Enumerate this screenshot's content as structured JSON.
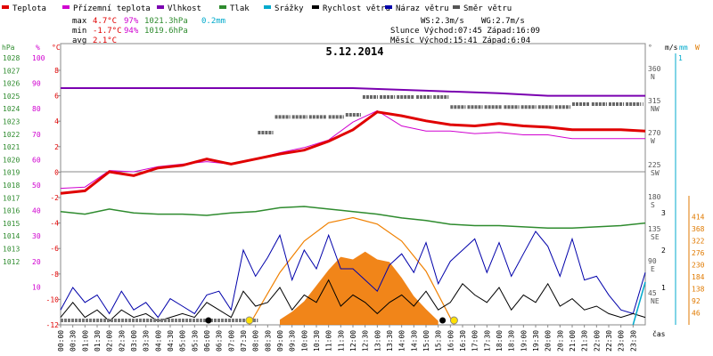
{
  "chart_data": {
    "type": "line",
    "title": "5.12.2014",
    "legend": [
      {
        "name": "Teplota",
        "color": "#e00000"
      },
      {
        "name": "Přízemní teplota",
        "color": "#d000d0"
      },
      {
        "name": "Vlhkost",
        "color": "#7a00b0"
      },
      {
        "name": "Tlak",
        "color": "#2e8b2e"
      },
      {
        "name": "Srážky",
        "color": "#00aacc"
      },
      {
        "name": "Rychlost větru",
        "color": "#000000"
      },
      {
        "name": "Náraz větru",
        "color": "#0000aa"
      },
      {
        "name": "Směr větru",
        "color": "#555555"
      }
    ],
    "stats": {
      "max_label": "max",
      "max_temp": "4.7°C",
      "max_hum": "97%",
      "max_press": "1021.3hPa",
      "max_rain": "0.2mm",
      "min_label": "min",
      "min_temp": "-1.7°C",
      "min_hum": "94%",
      "min_press": "1019.6hPa",
      "avg_label": "avg",
      "avg_temp": "2.1°C",
      "ws": "WS:2.3m/s",
      "wg": "WG:2.7m/s",
      "sun": "Slunce Východ:07:45  Západ:16:09",
      "moon": "Měsíc  Východ:15:41  Západ:6:04"
    },
    "axis_headers": {
      "hpa": "hPa",
      "pct": "%",
      "degc": "°C",
      "deg": "°",
      "ms": "m/s",
      "mm": "mm",
      "w": "W",
      "cas": "čas"
    },
    "hpa_ticks": [
      "1028",
      "1027",
      "1026",
      "1025",
      "1024",
      "1023",
      "1022",
      "1021",
      "1020",
      "1019",
      "1018",
      "1017",
      "1016",
      "1015",
      "1014",
      "1013",
      "1012"
    ],
    "pct_ticks": [
      "100",
      "90",
      "80",
      "70",
      "60",
      "50",
      "40",
      "30",
      "20",
      "10"
    ],
    "temp_ticks": [
      "8",
      "6",
      "4",
      "2",
      "0",
      "-2",
      "-4",
      "-6",
      "-8",
      "-10",
      "-12"
    ],
    "dir_ticks": [
      {
        "value": "360",
        "label": "N"
      },
      {
        "value": "315",
        "label": "NW"
      },
      {
        "value": "270",
        "label": "W"
      },
      {
        "value": "225",
        "label": "SW"
      },
      {
        "value": "180",
        "label": "S"
      },
      {
        "value": "135",
        "label": "SE"
      },
      {
        "value": "90",
        "label": "E"
      },
      {
        "value": "45",
        "label": "NE"
      }
    ],
    "wind_ticks": [
      "3",
      "2",
      "1"
    ],
    "rain_ticks": [
      "1"
    ],
    "sun_ticks": [
      "414",
      "368",
      "322",
      "276",
      "230",
      "184",
      "138",
      "92",
      "46"
    ],
    "x_ticks": [
      "00:00",
      "00:30",
      "01:00",
      "01:30",
      "02:00",
      "02:30",
      "03:00",
      "03:30",
      "04:00",
      "04:30",
      "05:00",
      "05:30",
      "06:00",
      "06:30",
      "07:00",
      "07:30",
      "08:00",
      "08:30",
      "09:00",
      "09:30",
      "10:00",
      "10:30",
      "11:00",
      "11:30",
      "12:00",
      "12:30",
      "13:00",
      "13:30",
      "14:00",
      "14:30",
      "15:00",
      "15:30",
      "16:00",
      "16:30",
      "17:00",
      "17:30",
      "18:00",
      "18:30",
      "19:00",
      "19:30",
      "20:00",
      "20:30",
      "21:00",
      "21:30",
      "22:00",
      "22:30",
      "23:00",
      "23:30"
    ],
    "temperature": {
      "x": [
        0,
        1,
        2,
        3,
        4,
        5,
        6,
        7,
        8,
        9,
        10,
        11,
        12,
        13,
        14,
        15,
        16,
        17,
        18,
        19,
        20,
        21,
        22,
        23,
        24
      ],
      "y": [
        -1.7,
        -1.5,
        0,
        -0.3,
        0.3,
        0.5,
        1,
        0.6,
        1,
        1.4,
        1.7,
        2.4,
        3.3,
        4.7,
        4.4,
        4.0,
        3.7,
        3.6,
        3.8,
        3.6,
        3.5,
        3.3,
        3.3,
        3.3,
        3.2
      ]
    },
    "ground_temperature": {
      "x": [
        0,
        1,
        2,
        3,
        4,
        5,
        6,
        7,
        8,
        9,
        10,
        11,
        12,
        13,
        14,
        15,
        16,
        17,
        18,
        19,
        20,
        21,
        22,
        23,
        24
      ],
      "y": [
        -1.3,
        -1.2,
        0.1,
        0,
        0.4,
        0.6,
        0.8,
        0.6,
        1,
        1.5,
        1.9,
        2.5,
        3.9,
        4.8,
        3.6,
        3.2,
        3.2,
        3.0,
        3.1,
        2.9,
        2.9,
        2.6,
        2.6,
        2.6,
        2.6
      ]
    },
    "humidity": {
      "x": [
        0,
        4,
        5,
        6,
        8,
        10,
        12,
        15,
        18,
        20,
        22,
        24
      ],
      "y": [
        97,
        97,
        97,
        97,
        97,
        97,
        97,
        96,
        95,
        94,
        94,
        94
      ]
    },
    "pressure": {
      "x": [
        0,
        1,
        2,
        3,
        4,
        5,
        6,
        7,
        8,
        9,
        10,
        11,
        12,
        13,
        14,
        15,
        16,
        17,
        18,
        19,
        20,
        21,
        22,
        23,
        24
      ],
      "y": [
        1020.9,
        1020.7,
        1021.1,
        1020.8,
        1020.7,
        1020.7,
        1020.6,
        1020.8,
        1020.9,
        1021.2,
        1021.3,
        1021.1,
        1020.9,
        1020.7,
        1020.4,
        1020.2,
        1019.9,
        1019.8,
        1019.8,
        1019.7,
        1019.6,
        1019.6,
        1019.7,
        1019.8,
        1020.0
      ]
    },
    "wind_direction": {
      "x": [
        8.1,
        8.8,
        9.5,
        10.2,
        11.0,
        11.7,
        12.4,
        13.1,
        13.8,
        14.6,
        15.3,
        16.0,
        16.7,
        17.4,
        18.2,
        18.9,
        19.6,
        20.3,
        21.0,
        21.8,
        22.5,
        23.2,
        23.9
      ],
      "y": [
        270,
        292,
        292,
        292,
        292,
        295,
        320,
        320,
        320,
        320,
        320,
        306,
        306,
        306,
        306,
        306,
        306,
        306,
        310,
        310,
        310,
        310,
        310
      ]
    },
    "wind_speed": {
      "x": [
        0,
        0.5,
        1,
        1.5,
        2,
        2.5,
        3,
        3.5,
        4,
        4.5,
        5,
        5.5,
        6,
        6.5,
        7,
        7.5,
        8,
        8.5,
        9,
        9.5,
        10,
        10.5,
        11,
        11.5,
        12,
        12.5,
        13,
        13.5,
        14,
        14.5,
        15,
        15.5,
        16,
        16.5,
        17,
        17.5,
        18,
        18.5,
        19,
        19.5,
        20,
        20.5,
        21,
        21.5,
        22,
        22.5,
        23,
        23.5,
        24
      ],
      "y": [
        0.2,
        0.6,
        0.2,
        0.4,
        0.1,
        0.4,
        0.2,
        0.3,
        0.1,
        0.2,
        0.3,
        0.2,
        0.6,
        0.4,
        0.2,
        0.9,
        0.5,
        0.6,
        1.0,
        0.4,
        0.8,
        0.6,
        1.2,
        0.5,
        0.8,
        0.6,
        0.3,
        0.6,
        0.8,
        0.5,
        0.9,
        0.4,
        0.6,
        1.1,
        0.8,
        0.6,
        1.0,
        0.4,
        0.8,
        0.6,
        1.1,
        0.5,
        0.7,
        0.4,
        0.5,
        0.3,
        0.2,
        0.3,
        0.2
      ]
    },
    "wind_gust": {
      "x": [
        0,
        0.5,
        1,
        1.5,
        2,
        2.5,
        3,
        3.5,
        4,
        4.5,
        5,
        5.5,
        6,
        6.5,
        7,
        7.5,
        8,
        8.5,
        9,
        9.5,
        10,
        10.5,
        11,
        11.5,
        12,
        12.5,
        13,
        13.5,
        14,
        14.5,
        15,
        15.5,
        16,
        16.5,
        17,
        17.5,
        18,
        18.5,
        19,
        19.5,
        20,
        20.5,
        21,
        21.5,
        22,
        22.5,
        23,
        23.5,
        24
      ],
      "y": [
        0.4,
        1.0,
        0.6,
        0.8,
        0.3,
        0.9,
        0.4,
        0.6,
        0.2,
        0.7,
        0.5,
        0.3,
        0.8,
        0.9,
        0.4,
        2.0,
        1.3,
        1.8,
        2.4,
        1.2,
        2.0,
        1.5,
        2.4,
        1.5,
        1.5,
        1.2,
        0.9,
        1.6,
        1.9,
        1.4,
        2.2,
        1.1,
        1.7,
        2.0,
        2.3,
        1.4,
        2.2,
        1.3,
        1.9,
        2.5,
        2.1,
        1.3,
        2.3,
        1.2,
        1.3,
        0.8,
        0.4,
        0.3,
        1.4
      ]
    },
    "sun_theoretical": {
      "x": [
        7.75,
        9,
        10,
        11,
        12,
        13,
        14,
        15,
        16.15
      ],
      "y": [
        0,
        200,
        320,
        390,
        410,
        385,
        320,
        205,
        0
      ]
    },
    "sun_measured": {
      "x": [
        9,
        9.5,
        10,
        10.5,
        11,
        11.5,
        12,
        12.5,
        13,
        13.5,
        14,
        14.5,
        15,
        15.5
      ],
      "y": [
        20,
        50,
        90,
        150,
        210,
        260,
        250,
        280,
        250,
        240,
        180,
        110,
        60,
        15
      ]
    },
    "rain": {
      "x": [
        23.5,
        24
      ],
      "y": [
        0,
        0.2
      ]
    }
  }
}
